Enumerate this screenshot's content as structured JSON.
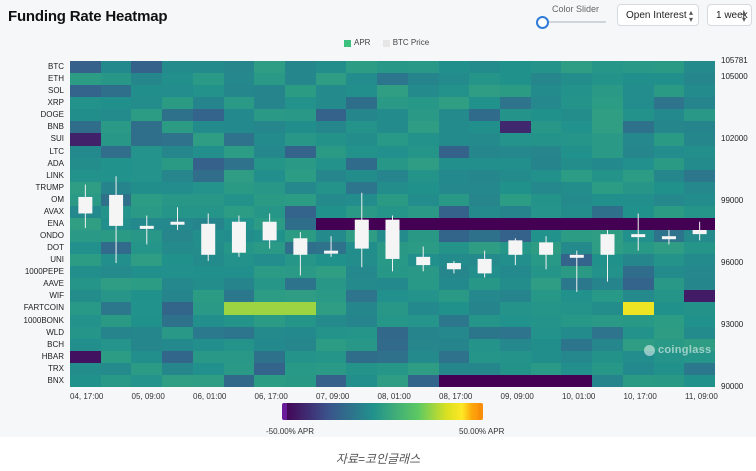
{
  "title": "Funding Rate Heatmap",
  "controls": {
    "color_slider_label": "Color Slider",
    "metric_select": "Open Interest",
    "range_select": "1 week"
  },
  "legend": [
    {
      "label": "APR",
      "color": "#3dbf7e"
    },
    {
      "label": "BTC Price",
      "color": "#e6e6e6"
    }
  ],
  "watermark": "coinglass",
  "colorbar": {
    "min_label": "-50.00% APR",
    "max_label": "50.00% APR"
  },
  "caption": "자료=코인글래스",
  "chart_data": {
    "type": "heatmap",
    "title": "Funding Rate Heatmap",
    "rows": [
      "BTC",
      "ETH",
      "SOL",
      "XRP",
      "DOGE",
      "BNB",
      "SUI",
      "LTC",
      "ADA",
      "LINK",
      "TRUMP",
      "OM",
      "AVAX",
      "ENA",
      "ONDO",
      "DOT",
      "UNI",
      "1000PEPE",
      "AAVE",
      "WIF",
      "FARTCOIN",
      "1000BONK",
      "WLD",
      "BCH",
      "HBAR",
      "TRX",
      "BNX"
    ],
    "x_tick_labels": [
      "04, 17:00",
      "05, 09:00",
      "06, 01:00",
      "06, 17:00",
      "07, 09:00",
      "08, 01:00",
      "08, 17:00",
      "09, 09:00",
      "10, 01:00",
      "10, 17:00",
      "11, 09:00"
    ],
    "columns": 21,
    "color_scale": {
      "min": -50,
      "max": 50,
      "unit": "% APR"
    },
    "highlights": [
      {
        "row": "ENA",
        "from_col": 8,
        "to_col": 20,
        "value": -50
      },
      {
        "row": "BNX",
        "from_col": 12,
        "to_col": 16,
        "value": -50
      },
      {
        "row": "FARTCOIN",
        "from_col": 5,
        "to_col": 7,
        "value": 30
      },
      {
        "row": "FARTCOIN",
        "from_col": 18,
        "to_col": 18,
        "value": 45
      },
      {
        "row": "HBAR",
        "from_col": 0,
        "to_col": 0,
        "value": -45
      },
      {
        "row": "WIF",
        "from_col": 20,
        "to_col": 20,
        "value": -42
      },
      {
        "row": "SUI",
        "from_col": 0,
        "to_col": 0,
        "value": -40
      },
      {
        "row": "BNB",
        "from_col": 14,
        "to_col": 14,
        "value": -38
      }
    ],
    "right_axis": {
      "label": "BTC Price",
      "ticks": [
        90000,
        93000,
        96000,
        99000,
        102000,
        105000,
        105781
      ],
      "ylim": [
        90000,
        105781
      ]
    },
    "candles": [
      {
        "o": 99200,
        "c": 98400,
        "h": 99800,
        "l": 97700
      },
      {
        "o": 99300,
        "c": 97800,
        "h": 100200,
        "l": 96000
      },
      {
        "o": 97700,
        "c": 97800,
        "h": 98300,
        "l": 96900
      },
      {
        "o": 98000,
        "c": 97900,
        "h": 98700,
        "l": 97600
      },
      {
        "o": 97900,
        "c": 96400,
        "h": 98400,
        "l": 96100
      },
      {
        "o": 98000,
        "c": 96500,
        "h": 98300,
        "l": 96300
      },
      {
        "o": 98000,
        "c": 97100,
        "h": 98400,
        "l": 96700
      },
      {
        "o": 97200,
        "c": 96400,
        "h": 97500,
        "l": 95400
      },
      {
        "o": 96500,
        "c": 96600,
        "h": 97300,
        "l": 96300
      },
      {
        "o": 98100,
        "c": 96700,
        "h": 99400,
        "l": 95800
      },
      {
        "o": 98100,
        "c": 96200,
        "h": 98300,
        "l": 95600
      },
      {
        "o": 96300,
        "c": 95900,
        "h": 96800,
        "l": 95600
      },
      {
        "o": 96000,
        "c": 95700,
        "h": 96100,
        "l": 95500
      },
      {
        "o": 96200,
        "c": 95500,
        "h": 96600,
        "l": 95300
      },
      {
        "o": 96400,
        "c": 97100,
        "h": 97200,
        "l": 95900
      },
      {
        "o": 96400,
        "c": 97000,
        "h": 97300,
        "l": 95700
      },
      {
        "o": 96400,
        "c": 96400,
        "h": 96600,
        "l": 94600
      },
      {
        "o": 96400,
        "c": 97400,
        "h": 97600,
        "l": 95100
      },
      {
        "o": 97300,
        "c": 97400,
        "h": 98400,
        "l": 96600
      },
      {
        "o": 97200,
        "c": 97300,
        "h": 97600,
        "l": 96900
      },
      {
        "o": 97400,
        "c": 97600,
        "h": 98000,
        "l": 97100
      }
    ]
  }
}
